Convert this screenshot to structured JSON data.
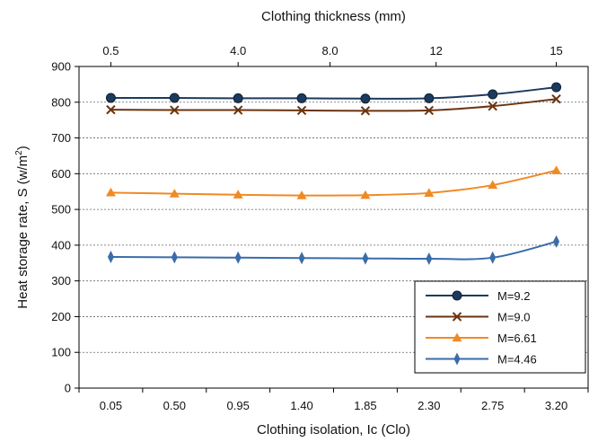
{
  "chart_data": {
    "type": "line",
    "xlabel": "Clothing isolation, Ic (Clo)",
    "x2label": "Clothing thickness (mm)",
    "ylabel_main": "Heat storage rate, S (w/m",
    "ylabel_sup": "2",
    "ylabel_tail": ")",
    "categories": [
      "0.05",
      "0.50",
      "0.95",
      "1.40",
      "1.85",
      "2.30",
      "2.75",
      "3.20"
    ],
    "top_ticks": [
      "0.5",
      "4.0",
      "8.0",
      "12",
      "15"
    ],
    "top_tick_positions": [
      0.05,
      0.95,
      1.6,
      2.35,
      3.2
    ],
    "ylim": [
      0,
      900
    ],
    "yticks": [
      0,
      100,
      200,
      300,
      400,
      500,
      600,
      700,
      800,
      900
    ],
    "grid": true,
    "legend_position": "bottom-right",
    "series": [
      {
        "name": "M=9.2",
        "color": "#1c3a5e",
        "marker": "circle",
        "values": [
          812,
          812,
          811,
          811,
          810,
          811,
          822,
          842
        ]
      },
      {
        "name": "M=9.0",
        "color": "#6b3410",
        "marker": "x",
        "values": [
          779,
          778,
          778,
          777,
          776,
          777,
          789,
          809
        ]
      },
      {
        "name": "M=6.61",
        "color": "#f08a24",
        "marker": "triangle",
        "values": [
          547,
          544,
          541,
          539,
          540,
          546,
          568,
          609
        ]
      },
      {
        "name": "M=4.46",
        "color": "#3a6ca8",
        "marker": "diamond",
        "values": [
          367,
          366,
          365,
          364,
          363,
          362,
          365,
          410
        ]
      }
    ]
  }
}
